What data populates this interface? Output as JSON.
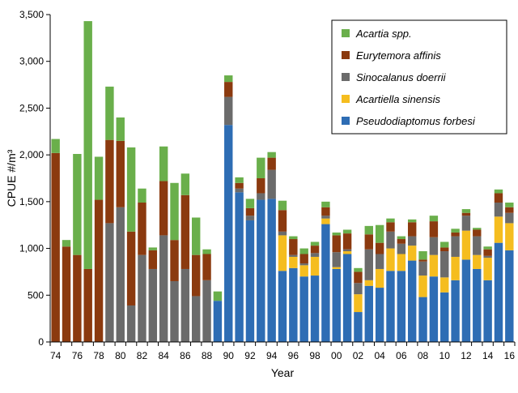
{
  "chart_data": {
    "type": "bar",
    "stacked": true,
    "title": "",
    "xlabel": "Year",
    "ylabel": "CPUE #/m³",
    "ylim": [
      0,
      3500
    ],
    "yticks": [
      "0",
      "500",
      "1,000",
      "1,500",
      "2,000",
      "2,500",
      "3,000",
      "3,500"
    ],
    "ytick_values": [
      0,
      500,
      1000,
      1500,
      2000,
      2500,
      3000,
      3500
    ],
    "categories": [
      "1974",
      "1975",
      "1976",
      "1977",
      "1978",
      "1979",
      "1980",
      "1981",
      "1982",
      "1983",
      "1984",
      "1985",
      "1986",
      "1987",
      "1988",
      "1989",
      "1990",
      "1991",
      "1992",
      "1993",
      "1994",
      "1995",
      "1996",
      "1997",
      "1998",
      "1999",
      "2000",
      "2001",
      "2002",
      "2003",
      "2004",
      "2005",
      "2006",
      "2007",
      "2008",
      "2009",
      "2010",
      "2011",
      "2012",
      "2013",
      "2014",
      "2015",
      "2016"
    ],
    "xtick_labels": [
      "74",
      "",
      "76",
      "",
      "78",
      "",
      "80",
      "",
      "82",
      "",
      "84",
      "",
      "86",
      "",
      "88",
      "",
      "90",
      "",
      "92",
      "",
      "94",
      "",
      "96",
      "",
      "98",
      "",
      "00",
      "",
      "02",
      "",
      "04",
      "",
      "06",
      "",
      "08",
      "",
      "10",
      "",
      "12",
      "",
      "14",
      "",
      "16"
    ],
    "legend_position": "top-right",
    "series": [
      {
        "name": "Pseudodiaptomus forbesi",
        "color": "#2E6DB4",
        "values": [
          0,
          0,
          0,
          0,
          0,
          0,
          0,
          0,
          0,
          0,
          0,
          0,
          0,
          0,
          0,
          440,
          2320,
          1600,
          1300,
          1520,
          1530,
          760,
          790,
          700,
          710,
          1260,
          780,
          940,
          320,
          600,
          580,
          760,
          760,
          870,
          480,
          700,
          530,
          660,
          880,
          780,
          660,
          1060,
          980
        ]
      },
      {
        "name": "Acartiella sinensis",
        "color": "#F5BD1F",
        "values": [
          0,
          0,
          0,
          0,
          0,
          0,
          0,
          0,
          0,
          0,
          0,
          0,
          0,
          0,
          0,
          0,
          0,
          0,
          0,
          0,
          0,
          380,
          120,
          120,
          200,
          60,
          20,
          30,
          190,
          60,
          200,
          240,
          180,
          160,
          230,
          230,
          160,
          250,
          310,
          150,
          240,
          280,
          290
        ]
      },
      {
        "name": "Sinocalanus doerrii",
        "color": "#6B6B6B",
        "values": [
          0,
          0,
          0,
          0,
          0,
          1270,
          1440,
          390,
          930,
          780,
          1140,
          650,
          780,
          490,
          660,
          0,
          300,
          40,
          50,
          70,
          310,
          40,
          20,
          20,
          40,
          30,
          160,
          20,
          120,
          330,
          160,
          180,
          110,
          100,
          150,
          190,
          280,
          220,
          160,
          200,
          20,
          150,
          110
        ]
      },
      {
        "name": "Eurytemora affinis",
        "color": "#8B3A0F",
        "values": [
          2020,
          1020,
          930,
          780,
          1520,
          890,
          710,
          790,
          560,
          200,
          580,
          440,
          790,
          440,
          280,
          0,
          160,
          60,
          80,
          160,
          130,
          230,
          170,
          100,
          80,
          90,
          180,
          170,
          120,
          160,
          120,
          100,
          50,
          150,
          20,
          170,
          40,
          40,
          30,
          70,
          70,
          100,
          60
        ]
      },
      {
        "name": "Acartia spp.",
        "color": "#6AAF4B",
        "values": [
          150,
          70,
          1080,
          2650,
          460,
          570,
          250,
          900,
          150,
          30,
          370,
          610,
          230,
          400,
          50,
          100,
          70,
          60,
          100,
          220,
          60,
          100,
          30,
          60,
          40,
          60,
          30,
          40,
          40,
          90,
          190,
          40,
          30,
          30,
          90,
          60,
          60,
          40,
          40,
          20,
          30,
          40,
          50
        ]
      }
    ]
  },
  "legend": {
    "items": [
      {
        "label": "Acartia spp.",
        "color": "#6AAF4B"
      },
      {
        "label": "Eurytemora affinis",
        "color": "#8B3A0F"
      },
      {
        "label": "Sinocalanus doerrii",
        "color": "#6B6B6B"
      },
      {
        "label": "Acartiella sinensis",
        "color": "#F5BD1F"
      },
      {
        "label": "Pseudodiaptomus forbesi",
        "color": "#2E6DB4"
      }
    ]
  }
}
